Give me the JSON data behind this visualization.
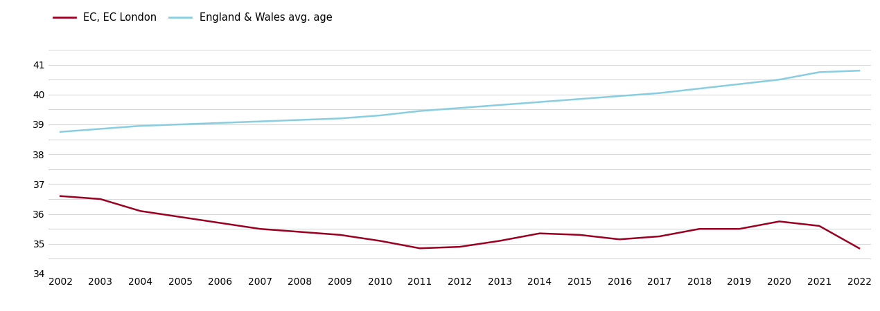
{
  "years": [
    2002,
    2003,
    2004,
    2005,
    2006,
    2007,
    2008,
    2009,
    2010,
    2011,
    2012,
    2013,
    2014,
    2015,
    2016,
    2017,
    2018,
    2019,
    2020,
    2021,
    2022
  ],
  "ec_london": [
    36.6,
    36.5,
    36.1,
    35.9,
    35.7,
    35.5,
    35.4,
    35.3,
    35.1,
    34.85,
    34.9,
    35.1,
    35.35,
    35.3,
    35.15,
    35.25,
    35.5,
    35.5,
    35.75,
    35.6,
    34.85
  ],
  "england_wales": [
    38.75,
    38.85,
    38.95,
    39.0,
    39.05,
    39.1,
    39.15,
    39.2,
    39.3,
    39.45,
    39.55,
    39.65,
    39.75,
    39.85,
    39.95,
    40.05,
    40.2,
    40.35,
    40.5,
    40.75,
    40.8
  ],
  "ec_color": "#990022",
  "ew_color": "#89CDE0",
  "ec_label": "EC, EC London",
  "ew_label": "England & Wales avg. age",
  "ylim_min": 34,
  "ylim_max": 41.5,
  "yticks_major": [
    34,
    35,
    36,
    37,
    38,
    39,
    40,
    41
  ],
  "yticks_minor": [
    34.5,
    35.5,
    36.5,
    37.5,
    38.5,
    39.5,
    40.5,
    41.5
  ],
  "background_color": "#ffffff",
  "grid_color": "#d8d8d8",
  "line_width": 1.8,
  "legend_fontsize": 10.5,
  "tick_fontsize": 10.0
}
